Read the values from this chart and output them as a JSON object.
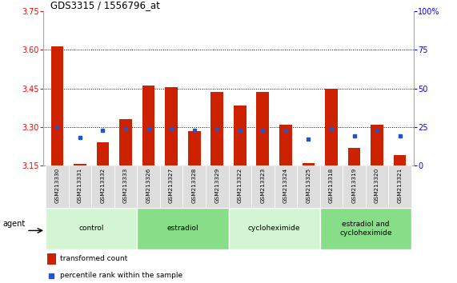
{
  "title": "GDS3315 / 1556796_at",
  "samples": [
    "GSM213330",
    "GSM213331",
    "GSM213332",
    "GSM213333",
    "GSM213326",
    "GSM213327",
    "GSM213328",
    "GSM213329",
    "GSM213322",
    "GSM213323",
    "GSM213324",
    "GSM213325",
    "GSM213318",
    "GSM213319",
    "GSM213320",
    "GSM213321"
  ],
  "red_values": [
    3.615,
    3.155,
    3.24,
    3.33,
    3.46,
    3.455,
    3.285,
    3.435,
    3.385,
    3.435,
    3.31,
    3.16,
    3.45,
    3.22,
    3.31,
    3.19
  ],
  "blue_values": [
    25,
    18,
    23,
    24,
    24,
    24,
    23,
    24,
    23,
    23,
    23,
    17,
    24,
    19,
    23,
    19
  ],
  "ylim_left": [
    3.15,
    3.75
  ],
  "ylim_right": [
    0,
    100
  ],
  "yticks_left": [
    3.75,
    3.6,
    3.45,
    3.3,
    3.15
  ],
  "yticks_right": [
    100,
    75,
    50,
    25,
    0
  ],
  "grid_values": [
    3.3,
    3.45,
    3.6
  ],
  "groups": [
    {
      "label": "control",
      "start": 0,
      "end": 3,
      "color": "#d4f5d4"
    },
    {
      "label": "estradiol",
      "start": 4,
      "end": 7,
      "color": "#88dd88"
    },
    {
      "label": "cycloheximide",
      "start": 8,
      "end": 11,
      "color": "#d4f5d4"
    },
    {
      "label": "estradiol and\ncycloheximide",
      "start": 12,
      "end": 15,
      "color": "#88dd88"
    }
  ],
  "bar_color": "#cc2200",
  "blue_color": "#2255cc",
  "background_color": "#ffffff",
  "legend_red": "transformed count",
  "legend_blue": "percentile rank within the sample",
  "agent_label": "agent",
  "bar_width": 0.55,
  "base_value": 3.15
}
